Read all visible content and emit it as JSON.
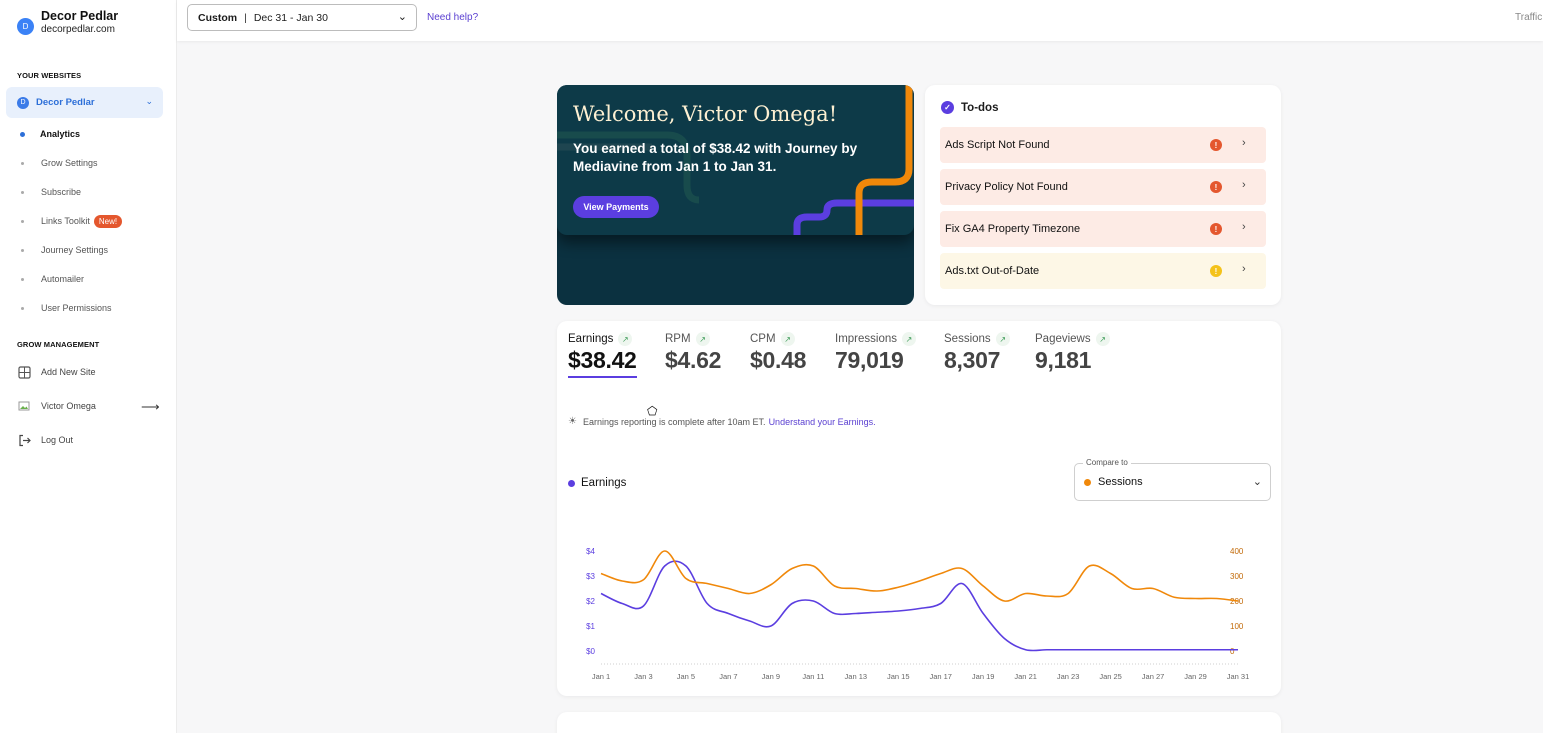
{
  "brand": {
    "avatar_letter": "D",
    "name": "Decor Pedlar",
    "url": "decorpedlar.com"
  },
  "sidebar": {
    "websites_heading": "YOUR WEBSITES",
    "selected_site": {
      "letter": "D",
      "name": "Decor Pedlar"
    },
    "items": [
      {
        "label": "Analytics",
        "active": true
      },
      {
        "label": "Grow Settings"
      },
      {
        "label": "Subscribe"
      },
      {
        "label": "Links Toolkit",
        "badge": "New!"
      },
      {
        "label": "Journey Settings"
      },
      {
        "label": "Automailer"
      },
      {
        "label": "User Permissions"
      }
    ],
    "management_heading": "GROW MANAGEMENT",
    "add_site": "Add New Site",
    "user": "Victor Omega",
    "logout": "Log Out"
  },
  "topbar": {
    "range_type": "Custom",
    "range": "Dec 31 - Jan 30",
    "help": "Need help?",
    "right_link": "Traffic"
  },
  "welcome": {
    "title": "Welcome, Victor Omega!",
    "message": "You earned a total of $38.42 with Journey by Mediavine from Jan 1 to Jan 31.",
    "button": "View Payments"
  },
  "todos": {
    "title": "To-dos",
    "items": [
      {
        "label": "Ads Script Not Found",
        "severity": "error"
      },
      {
        "label": "Privacy Policy Not Found",
        "severity": "error"
      },
      {
        "label": "Fix GA4 Property Timezone",
        "severity": "error"
      },
      {
        "label": "Ads.txt Out-of-Date",
        "severity": "warning"
      }
    ]
  },
  "metrics": [
    {
      "label": "Earnings",
      "value": "$38.42",
      "selected": true
    },
    {
      "label": "RPM",
      "value": "$4.62"
    },
    {
      "label": "CPM",
      "value": "$0.48"
    },
    {
      "label": "Impressions",
      "value": "79,019"
    },
    {
      "label": "Sessions",
      "value": "8,307"
    },
    {
      "label": "Pageviews",
      "value": "9,181"
    }
  ],
  "note": {
    "text": "Earnings reporting is complete after 10am ET.",
    "link": "Understand your Earnings."
  },
  "chart_controls": {
    "legend": "Earnings",
    "compare_label": "Compare to",
    "compare_value": "Sessions"
  },
  "colors": {
    "earnings": "#5b3ee0",
    "sessions": "#f0880a",
    "accent": "#5b3ee0",
    "error": "#e4572e",
    "warning": "#f4c21a"
  },
  "chart_data": {
    "type": "line",
    "x": [
      "Jan 1",
      "Jan 2",
      "Jan 3",
      "Jan 4",
      "Jan 5",
      "Jan 6",
      "Jan 7",
      "Jan 8",
      "Jan 9",
      "Jan 10",
      "Jan 11",
      "Jan 12",
      "Jan 13",
      "Jan 14",
      "Jan 15",
      "Jan 16",
      "Jan 17",
      "Jan 18",
      "Jan 19",
      "Jan 20",
      "Jan 21",
      "Jan 22",
      "Jan 23",
      "Jan 24",
      "Jan 25",
      "Jan 26",
      "Jan 27",
      "Jan 28",
      "Jan 29",
      "Jan 30",
      "Jan 31"
    ],
    "x_tick_labels": [
      "Jan 1",
      "Jan 3",
      "Jan 5",
      "Jan 7",
      "Jan 9",
      "Jan 11",
      "Jan 13",
      "Jan 15",
      "Jan 17",
      "Jan 19",
      "Jan 21",
      "Jan 23",
      "Jan 25",
      "Jan 27",
      "Jan 29",
      "Jan 31"
    ],
    "series": [
      {
        "name": "Earnings",
        "axis": "left",
        "values": [
          2.3,
          1.9,
          1.8,
          3.4,
          3.4,
          1.9,
          1.5,
          1.2,
          1.0,
          1.9,
          2.0,
          1.5,
          1.5,
          1.55,
          1.6,
          1.7,
          1.9,
          2.7,
          1.5,
          0.5,
          0.05,
          0.05,
          0.05,
          0.05,
          0.05,
          0.05,
          0.05,
          0.05,
          0.05,
          0.05,
          0.05
        ]
      },
      {
        "name": "Sessions",
        "axis": "right",
        "values": [
          310,
          280,
          285,
          400,
          290,
          270,
          250,
          230,
          265,
          330,
          340,
          260,
          250,
          240,
          255,
          280,
          310,
          330,
          260,
          200,
          230,
          220,
          230,
          340,
          310,
          250,
          250,
          215,
          210,
          210,
          200
        ]
      }
    ],
    "left_axis": {
      "ticks": [
        "$0",
        "$1",
        "$2",
        "$3",
        "$4"
      ],
      "ylim": [
        0,
        4
      ]
    },
    "right_axis": {
      "ticks": [
        "0",
        "100",
        "200",
        "300",
        "400"
      ],
      "ylim": [
        0,
        400
      ]
    }
  }
}
